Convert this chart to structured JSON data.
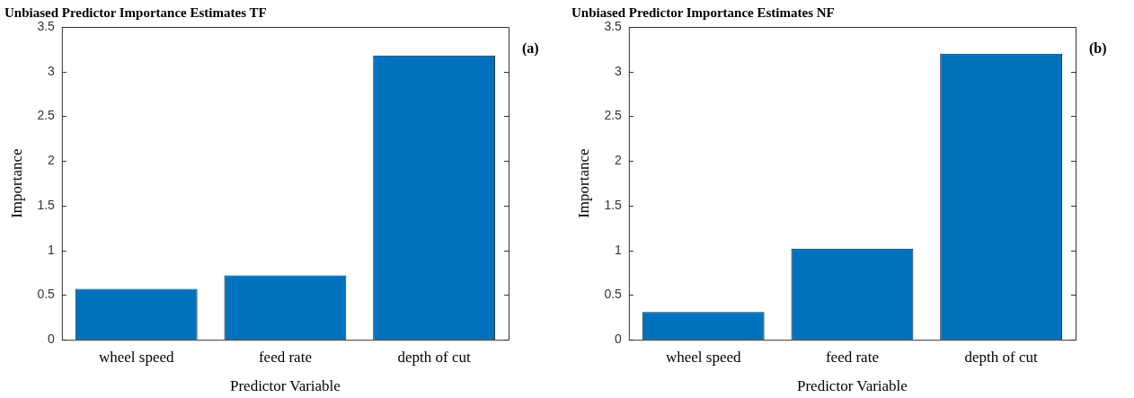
{
  "chart_data": [
    {
      "type": "bar",
      "title": "Unbiased Predictor Importance Estimates TF",
      "xlabel": "Predictor Variable",
      "ylabel": "Importance",
      "categories": [
        "wheel speed",
        "feed rate",
        "depth of cut"
      ],
      "values": [
        0.57,
        0.72,
        3.18
      ],
      "color": "#0072bd",
      "ylim": [
        0,
        3.5
      ],
      "yticks": [
        0,
        0.5,
        1,
        1.5,
        2,
        2.5,
        3,
        3.5
      ],
      "annotations": [
        "(a)"
      ]
    },
    {
      "type": "bar",
      "title": "Unbiased Predictor Importance Estimates NF",
      "xlabel": "Predictor Variable",
      "ylabel": "Importance",
      "categories": [
        "wheel speed",
        "feed rate",
        "depth of cut"
      ],
      "values": [
        0.31,
        1.02,
        3.2
      ],
      "color": "#0072bd",
      "ylim": [
        0,
        3.5
      ],
      "yticks": [
        0,
        0.5,
        1,
        1.5,
        2,
        2.5,
        3,
        3.5
      ],
      "annotations": [
        "(b)"
      ]
    }
  ]
}
